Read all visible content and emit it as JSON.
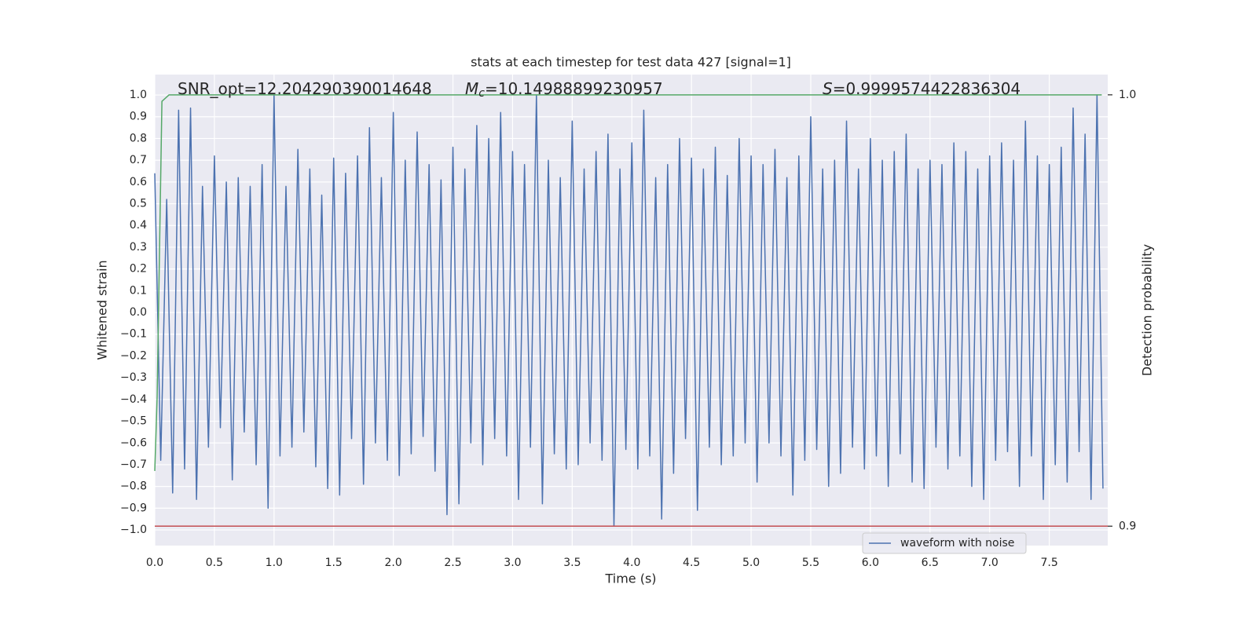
{
  "chart_data": {
    "type": "line",
    "title": "stats at each timestep for test data 427 [signal=1]",
    "xlabel": "Time (s)",
    "ylabel": "Whitened strain",
    "y2label": "Detection probability",
    "annotations": [
      {
        "text": "SNR_opt=12.204290390014648"
      },
      {
        "symbol": "M",
        "subscript": "c",
        "text": "=10.14988899230957"
      },
      {
        "symbol": "S",
        "text": "=0.9999574422836304"
      }
    ],
    "xlim": [
      0,
      7.99
    ],
    "ylim": [
      -1.072,
      1.094
    ],
    "y2lim": [
      0.8955,
      1.0047
    ],
    "xticks": [
      {
        "value": 0,
        "label": "0.0"
      },
      {
        "value": 0.5,
        "label": "0.5"
      },
      {
        "value": 1,
        "label": "1.0"
      },
      {
        "value": 1.5,
        "label": "1.5"
      },
      {
        "value": 2,
        "label": "2.0"
      },
      {
        "value": 2.5,
        "label": "2.5"
      },
      {
        "value": 3,
        "label": "3.0"
      },
      {
        "value": 3.5,
        "label": "3.5"
      },
      {
        "value": 4,
        "label": "4.0"
      },
      {
        "value": 4.5,
        "label": "4.5"
      },
      {
        "value": 5,
        "label": "5.0"
      },
      {
        "value": 5.5,
        "label": "5.5"
      },
      {
        "value": 6,
        "label": "6.0"
      },
      {
        "value": 6.5,
        "label": "6.5"
      },
      {
        "value": 7,
        "label": "7.0"
      },
      {
        "value": 7.5,
        "label": "7.5"
      }
    ],
    "yticks": [
      {
        "value": 1,
        "label": "1.0"
      },
      {
        "value": 0.9,
        "label": "0.9"
      },
      {
        "value": 0.8,
        "label": "0.8"
      },
      {
        "value": 0.7,
        "label": "0.7"
      },
      {
        "value": 0.6,
        "label": "0.6"
      },
      {
        "value": 0.5,
        "label": "0.5"
      },
      {
        "value": 0.4,
        "label": "0.4"
      },
      {
        "value": 0.3,
        "label": "0.3"
      },
      {
        "value": 0.2,
        "label": "0.2"
      },
      {
        "value": 0.1,
        "label": "0.1"
      },
      {
        "value": 0,
        "label": "0.0"
      },
      {
        "value": -0.1,
        "label": "−0.1"
      },
      {
        "value": -0.2,
        "label": "−0.2"
      },
      {
        "value": -0.3,
        "label": "−0.3"
      },
      {
        "value": -0.4,
        "label": "−0.4"
      },
      {
        "value": -0.5,
        "label": "−0.5"
      },
      {
        "value": -0.6,
        "label": "−0.6"
      },
      {
        "value": -0.7,
        "label": "−0.7"
      },
      {
        "value": -0.8,
        "label": "−0.8"
      },
      {
        "value": -0.9,
        "label": "−0.9"
      },
      {
        "value": -1,
        "label": "−1.0"
      }
    ],
    "y2ticks": [
      {
        "value": 1,
        "label": "1.0"
      },
      {
        "value": 0.9,
        "label": "0.9"
      }
    ],
    "grid": true,
    "legend": "lower right",
    "series": [
      {
        "name": "waveform with noise",
        "color": "#4c72b0",
        "axis": "y",
        "x": [
          0,
          0.05,
          0.1,
          0.15,
          0.2,
          0.25,
          0.3,
          0.35,
          0.4,
          0.45,
          0.5,
          0.55,
          0.6,
          0.65,
          0.7,
          0.75,
          0.8,
          0.85,
          0.9,
          0.95,
          1,
          1.05,
          1.1,
          1.15,
          1.2,
          1.25,
          1.3,
          1.35,
          1.4,
          1.45,
          1.5,
          1.55,
          1.6,
          1.65,
          1.7,
          1.75,
          1.8,
          1.85,
          1.9,
          1.95,
          2,
          2.05,
          2.1,
          2.15,
          2.2,
          2.25,
          2.3,
          2.35,
          2.4,
          2.45,
          2.5,
          2.55,
          2.6,
          2.65,
          2.7,
          2.75,
          2.8,
          2.85,
          2.9,
          2.95,
          3,
          3.05,
          3.1,
          3.15,
          3.2,
          3.25,
          3.3,
          3.35,
          3.4,
          3.45,
          3.5,
          3.55,
          3.6,
          3.65,
          3.7,
          3.75,
          3.8,
          3.85,
          3.9,
          3.95,
          4,
          4.05,
          4.1,
          4.15,
          4.2,
          4.25,
          4.3,
          4.35,
          4.4,
          4.45,
          4.5,
          4.55,
          4.6,
          4.65,
          4.7,
          4.75,
          4.8,
          4.85,
          4.9,
          4.95,
          5,
          5.05,
          5.1,
          5.15,
          5.2,
          5.25,
          5.3,
          5.35,
          5.4,
          5.45,
          5.5,
          5.55,
          5.6,
          5.65,
          5.7,
          5.75,
          5.8,
          5.85,
          5.9,
          5.95,
          6,
          6.05,
          6.1,
          6.15,
          6.2,
          6.25,
          6.3,
          6.35,
          6.4,
          6.45,
          6.5,
          6.55,
          6.6,
          6.65,
          6.7,
          6.75,
          6.8,
          6.85,
          6.9,
          6.95,
          7,
          7.05,
          7.1,
          7.15,
          7.2,
          7.25,
          7.3,
          7.35,
          7.4,
          7.45,
          7.5,
          7.55,
          7.6,
          7.65,
          7.7,
          7.75,
          7.8,
          7.85,
          7.9,
          7.95
        ],
        "values": [
          0.64,
          -0.68,
          0.52,
          -0.83,
          0.93,
          -0.72,
          0.94,
          -0.86,
          0.58,
          -0.62,
          0.72,
          -0.53,
          0.6,
          -0.77,
          0.62,
          -0.55,
          0.58,
          -0.7,
          0.68,
          -0.9,
          1.0,
          -0.66,
          0.58,
          -0.62,
          0.75,
          -0.55,
          0.66,
          -0.71,
          0.54,
          -0.81,
          0.71,
          -0.84,
          0.64,
          -0.58,
          0.72,
          -0.79,
          0.85,
          -0.6,
          0.62,
          -0.68,
          0.92,
          -0.75,
          0.7,
          -0.65,
          0.83,
          -0.57,
          0.68,
          -0.73,
          0.61,
          -0.93,
          0.76,
          -0.88,
          0.66,
          -0.6,
          0.86,
          -0.7,
          0.8,
          -0.58,
          0.92,
          -0.66,
          0.74,
          -0.86,
          0.68,
          -0.62,
          1.0,
          -0.88,
          0.7,
          -0.65,
          0.62,
          -0.72,
          0.88,
          -0.7,
          0.66,
          -0.6,
          0.74,
          -0.68,
          0.82,
          -0.98,
          0.66,
          -0.63,
          0.78,
          -0.72,
          0.93,
          -0.66,
          0.62,
          -0.95,
          0.68,
          -0.74,
          0.8,
          -0.58,
          0.71,
          -0.91,
          0.66,
          -0.62,
          0.76,
          -0.7,
          0.63,
          -0.66,
          0.8,
          -0.6,
          0.72,
          -0.78,
          0.68,
          -0.6,
          0.75,
          -0.66,
          0.62,
          -0.84,
          0.72,
          -0.68,
          0.9,
          -0.63,
          0.66,
          -0.8,
          0.7,
          -0.74,
          0.88,
          -0.62,
          0.66,
          -0.72,
          0.8,
          -0.66,
          0.7,
          -0.8,
          0.74,
          -0.65,
          0.82,
          -0.78,
          0.66,
          -0.81,
          0.7,
          -0.62,
          0.68,
          -0.72,
          0.78,
          -0.66,
          0.74,
          -0.8,
          0.66,
          -0.86,
          0.72,
          -0.68,
          0.78,
          -0.64,
          0.7,
          -0.8,
          0.88,
          -0.66,
          0.72,
          -0.86,
          0.68,
          -0.7,
          0.76,
          -0.78,
          0.94,
          -0.64,
          0.82,
          -0.86,
          1.0,
          -0.81
        ]
      },
      {
        "color": "#55a868",
        "axis": "y2",
        "x": [
          0,
          0.02,
          0.06,
          0.12,
          7.94
        ],
        "values": [
          0.9128,
          0.93,
          0.9985,
          1.0,
          1.0
        ]
      },
      {
        "color": "#c44e52",
        "axis": "y2",
        "x": [
          0,
          7.99
        ],
        "values": [
          0.9,
          0.9
        ]
      }
    ]
  }
}
